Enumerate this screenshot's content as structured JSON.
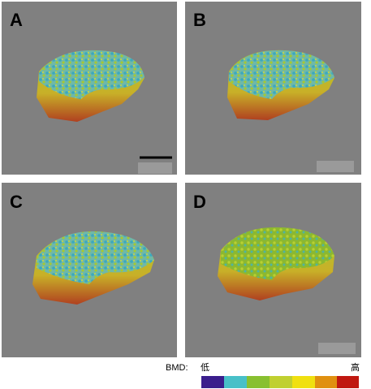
{
  "panels": [
    {
      "label": "A"
    },
    {
      "label": "B"
    },
    {
      "label": "C"
    },
    {
      "label": "D"
    }
  ],
  "legend": {
    "title": "BMD:",
    "low": "低",
    "high": "高"
  }
}
